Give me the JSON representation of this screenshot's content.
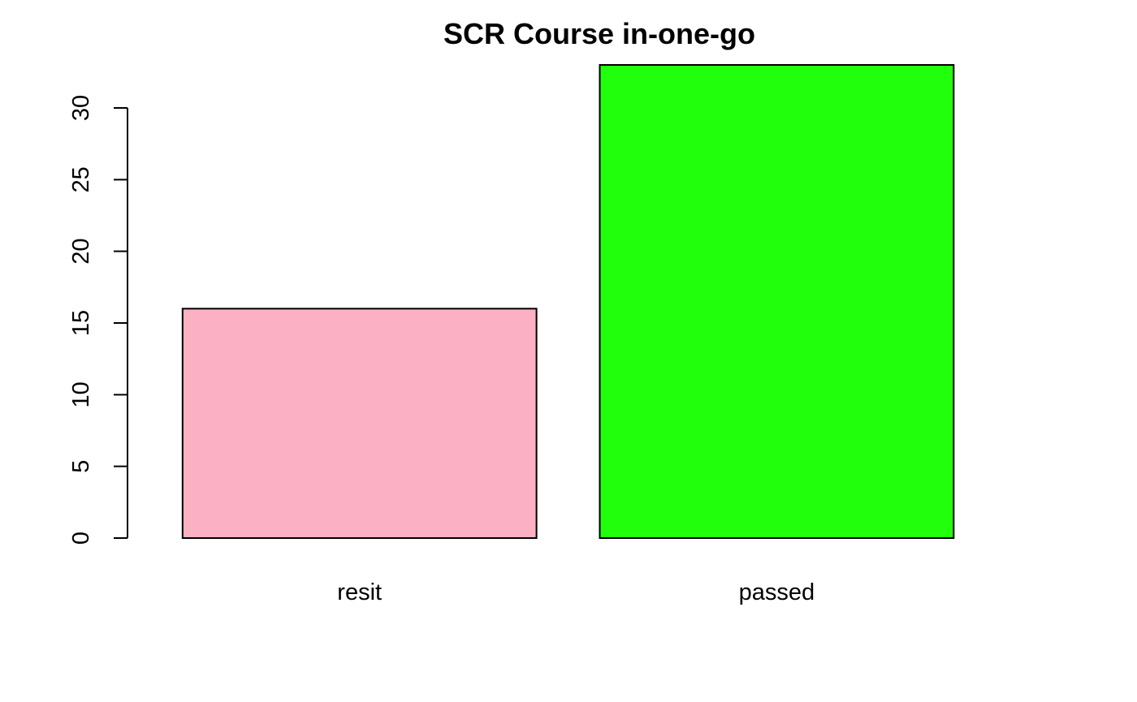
{
  "chart_data": {
    "type": "bar",
    "title": "SCR Course in-one-go",
    "xlabel": "",
    "ylabel": "",
    "categories": [
      "resit",
      "passed"
    ],
    "values": [
      16,
      33
    ],
    "colors": [
      "#FBB0C3",
      "#22FF0D"
    ],
    "ylim": [
      0,
      33
    ],
    "yticks": [
      0,
      5,
      10,
      15,
      20,
      25,
      30
    ],
    "grid": false,
    "legend": "none"
  }
}
